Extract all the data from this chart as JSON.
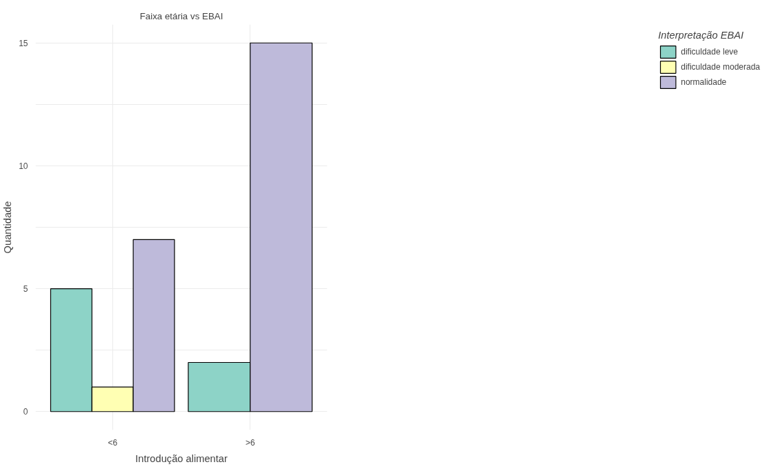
{
  "chart_data": {
    "type": "bar",
    "title": "Faixa etária vs EBAI",
    "xlabel": "Introdução alimentar",
    "ylabel": "Quantidade",
    "legend_title": "Interpretação EBAI",
    "categories": [
      "<6",
      ">6"
    ],
    "series": [
      {
        "name": "dificuldade leve",
        "color": "#8dd3c7",
        "values": [
          5,
          2
        ]
      },
      {
        "name": "dificuldade moderada",
        "color": "#ffffb3",
        "values": [
          1,
          null
        ]
      },
      {
        "name": "normalidade",
        "color": "#bebada",
        "values": [
          7,
          15
        ]
      }
    ],
    "ylim": [
      -0.75,
      15.75
    ],
    "yticks": [
      0,
      {
        "value": 2.5,
        "label": null
      },
      5,
      {
        "value": 7.5,
        "label": null
      },
      10,
      {
        "value": 12.5,
        "label": null
      },
      15
    ],
    "grid": true,
    "legend": "right"
  }
}
